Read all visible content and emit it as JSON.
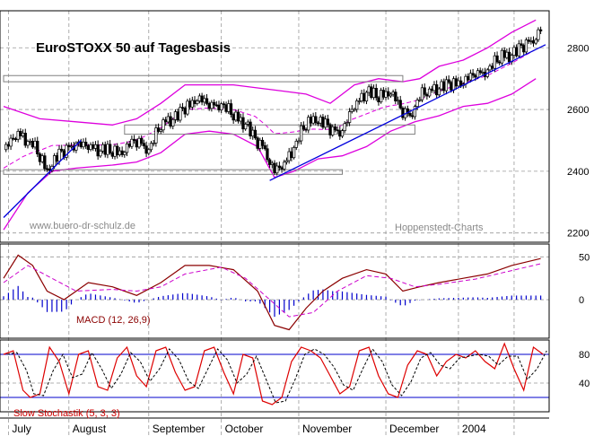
{
  "chart_data": [
    {
      "type": "candlestick",
      "panel": "price",
      "title": "EuroSTOXX 50 auf Tagesbasis",
      "watermark": "www.buero-dr-schulz.de",
      "source": "Hoppenstedt-Charts",
      "x_ticks": [
        "July",
        "August",
        "September",
        "October",
        "November",
        "December",
        "2004"
      ],
      "y_ticks": [
        2200,
        2400,
        2600,
        2800
      ],
      "ylim": [
        2170,
        2920
      ],
      "grid": true,
      "close_series": [
        {
          "day": 0,
          "close": 2470
        },
        {
          "day": 6,
          "close": 2520
        },
        {
          "day": 12,
          "close": 2490
        },
        {
          "day": 18,
          "close": 2400
        },
        {
          "day": 22,
          "close": 2450
        },
        {
          "day": 30,
          "close": 2490
        },
        {
          "day": 40,
          "close": 2470
        },
        {
          "day": 48,
          "close": 2460
        },
        {
          "day": 55,
          "close": 2500
        },
        {
          "day": 60,
          "close": 2470
        },
        {
          "day": 66,
          "close": 2560
        },
        {
          "day": 72,
          "close": 2580
        },
        {
          "day": 80,
          "close": 2640
        },
        {
          "day": 85,
          "close": 2610
        },
        {
          "day": 90,
          "close": 2620
        },
        {
          "day": 96,
          "close": 2570
        },
        {
          "day": 100,
          "close": 2560
        },
        {
          "day": 104,
          "close": 2500
        },
        {
          "day": 108,
          "close": 2470
        },
        {
          "day": 112,
          "close": 2400
        },
        {
          "day": 116,
          "close": 2420
        },
        {
          "day": 120,
          "close": 2480
        },
        {
          "day": 124,
          "close": 2540
        },
        {
          "day": 128,
          "close": 2570
        },
        {
          "day": 132,
          "close": 2560
        },
        {
          "day": 136,
          "close": 2530
        },
        {
          "day": 140,
          "close": 2530
        },
        {
          "day": 144,
          "close": 2600
        },
        {
          "day": 150,
          "close": 2660
        },
        {
          "day": 155,
          "close": 2640
        },
        {
          "day": 160,
          "close": 2660
        },
        {
          "day": 164,
          "close": 2600
        },
        {
          "day": 168,
          "close": 2580
        },
        {
          "day": 172,
          "close": 2640
        },
        {
          "day": 178,
          "close": 2670
        },
        {
          "day": 185,
          "close": 2680
        },
        {
          "day": 192,
          "close": 2700
        },
        {
          "day": 200,
          "close": 2730
        },
        {
          "day": 206,
          "close": 2770
        },
        {
          "day": 212,
          "close": 2790
        },
        {
          "day": 218,
          "close": 2820
        },
        {
          "day": 222,
          "close": 2860
        }
      ],
      "upper_band": [
        {
          "day": 0,
          "value": 2610
        },
        {
          "day": 15,
          "value": 2570
        },
        {
          "day": 30,
          "value": 2560
        },
        {
          "day": 45,
          "value": 2550
        },
        {
          "day": 55,
          "value": 2570
        },
        {
          "day": 65,
          "value": 2620
        },
        {
          "day": 75,
          "value": 2680
        },
        {
          "day": 85,
          "value": 2680
        },
        {
          "day": 95,
          "value": 2680
        },
        {
          "day": 105,
          "value": 2670
        },
        {
          "day": 115,
          "value": 2660
        },
        {
          "day": 125,
          "value": 2650
        },
        {
          "day": 135,
          "value": 2620
        },
        {
          "day": 145,
          "value": 2680
        },
        {
          "day": 155,
          "value": 2700
        },
        {
          "day": 165,
          "value": 2690
        },
        {
          "day": 172,
          "value": 2700
        },
        {
          "day": 180,
          "value": 2740
        },
        {
          "day": 190,
          "value": 2760
        },
        {
          "day": 200,
          "value": 2800
        },
        {
          "day": 210,
          "value": 2850
        },
        {
          "day": 220,
          "value": 2890
        }
      ],
      "lower_band": [
        {
          "day": 0,
          "value": 2210
        },
        {
          "day": 10,
          "value": 2330
        },
        {
          "day": 20,
          "value": 2400
        },
        {
          "day": 30,
          "value": 2410
        },
        {
          "day": 45,
          "value": 2420
        },
        {
          "day": 55,
          "value": 2430
        },
        {
          "day": 65,
          "value": 2460
        },
        {
          "day": 75,
          "value": 2520
        },
        {
          "day": 85,
          "value": 2530
        },
        {
          "day": 95,
          "value": 2520
        },
        {
          "day": 105,
          "value": 2480
        },
        {
          "day": 112,
          "value": 2380
        },
        {
          "day": 120,
          "value": 2400
        },
        {
          "day": 130,
          "value": 2440
        },
        {
          "day": 140,
          "value": 2450
        },
        {
          "day": 150,
          "value": 2480
        },
        {
          "day": 160,
          "value": 2530
        },
        {
          "day": 170,
          "value": 2560
        },
        {
          "day": 180,
          "value": 2580
        },
        {
          "day": 190,
          "value": 2610
        },
        {
          "day": 200,
          "value": 2620
        },
        {
          "day": 210,
          "value": 2650
        },
        {
          "day": 220,
          "value": 2700
        }
      ],
      "trend_lines": [
        {
          "from": {
            "day": 0,
            "value": 2250
          },
          "to": {
            "day": 32,
            "value": 2500
          }
        },
        {
          "from": {
            "day": 110,
            "value": 2370
          },
          "to": {
            "day": 224,
            "value": 2810
          }
        }
      ],
      "support_boxes": [
        {
          "day_start": 0,
          "day_end": 165,
          "low": 2690,
          "high": 2710
        },
        {
          "day_start": 50,
          "day_end": 170,
          "low": 2520,
          "high": 2550
        },
        {
          "day_start": 0,
          "day_end": 140,
          "low": 2390,
          "high": 2405
        }
      ]
    },
    {
      "type": "line+bar",
      "panel": "macd",
      "label": "MACD (12, 26,9)",
      "y_ticks": [
        0,
        50
      ],
      "ylim": [
        -45,
        65
      ],
      "macd": [
        {
          "day": 0,
          "value": 25
        },
        {
          "day": 6,
          "value": 52
        },
        {
          "day": 12,
          "value": 40
        },
        {
          "day": 18,
          "value": 10
        },
        {
          "day": 25,
          "value": 0
        },
        {
          "day": 35,
          "value": 20
        },
        {
          "day": 45,
          "value": 15
        },
        {
          "day": 55,
          "value": 5
        },
        {
          "day": 65,
          "value": 20
        },
        {
          "day": 75,
          "value": 40
        },
        {
          "day": 85,
          "value": 40
        },
        {
          "day": 95,
          "value": 35
        },
        {
          "day": 105,
          "value": 10
        },
        {
          "day": 112,
          "value": -30
        },
        {
          "day": 118,
          "value": -35
        },
        {
          "day": 125,
          "value": -10
        },
        {
          "day": 132,
          "value": 10
        },
        {
          "day": 140,
          "value": 25
        },
        {
          "day": 150,
          "value": 35
        },
        {
          "day": 158,
          "value": 30
        },
        {
          "day": 165,
          "value": 10
        },
        {
          "day": 172,
          "value": 15
        },
        {
          "day": 180,
          "value": 20
        },
        {
          "day": 190,
          "value": 25
        },
        {
          "day": 200,
          "value": 30
        },
        {
          "day": 210,
          "value": 40
        },
        {
          "day": 222,
          "value": 48
        }
      ],
      "signal": [
        {
          "day": 0,
          "value": 20
        },
        {
          "day": 10,
          "value": 40
        },
        {
          "day": 20,
          "value": 25
        },
        {
          "day": 30,
          "value": 10
        },
        {
          "day": 45,
          "value": 12
        },
        {
          "day": 55,
          "value": 10
        },
        {
          "day": 65,
          "value": 15
        },
        {
          "day": 75,
          "value": 30
        },
        {
          "day": 90,
          "value": 38
        },
        {
          "day": 100,
          "value": 25
        },
        {
          "day": 110,
          "value": 0
        },
        {
          "day": 118,
          "value": -20
        },
        {
          "day": 128,
          "value": -15
        },
        {
          "day": 138,
          "value": 10
        },
        {
          "day": 150,
          "value": 28
        },
        {
          "day": 160,
          "value": 25
        },
        {
          "day": 170,
          "value": 15
        },
        {
          "day": 180,
          "value": 18
        },
        {
          "day": 195,
          "value": 24
        },
        {
          "day": 210,
          "value": 34
        },
        {
          "day": 222,
          "value": 42
        }
      ]
    },
    {
      "type": "line",
      "panel": "stochastic",
      "label": "Slow Stochastik (5, 3, 3)",
      "y_ticks": [
        40,
        80
      ],
      "ylim": [
        0,
        100
      ],
      "reference_lines": [
        80,
        20
      ],
      "k_line": [
        {
          "day": 0,
          "value": 80
        },
        {
          "day": 4,
          "value": 85
        },
        {
          "day": 8,
          "value": 30
        },
        {
          "day": 11,
          "value": 20
        },
        {
          "day": 15,
          "value": 25
        },
        {
          "day": 19,
          "value": 90
        },
        {
          "day": 23,
          "value": 70
        },
        {
          "day": 27,
          "value": 25
        },
        {
          "day": 31,
          "value": 80
        },
        {
          "day": 35,
          "value": 85
        },
        {
          "day": 39,
          "value": 35
        },
        {
          "day": 43,
          "value": 30
        },
        {
          "day": 47,
          "value": 75
        },
        {
          "day": 51,
          "value": 90
        },
        {
          "day": 55,
          "value": 50
        },
        {
          "day": 59,
          "value": 35
        },
        {
          "day": 63,
          "value": 85
        },
        {
          "day": 67,
          "value": 90
        },
        {
          "day": 71,
          "value": 55
        },
        {
          "day": 75,
          "value": 30
        },
        {
          "day": 79,
          "value": 35
        },
        {
          "day": 83,
          "value": 85
        },
        {
          "day": 87,
          "value": 90
        },
        {
          "day": 91,
          "value": 55
        },
        {
          "day": 95,
          "value": 25
        },
        {
          "day": 99,
          "value": 80
        },
        {
          "day": 103,
          "value": 75
        },
        {
          "day": 107,
          "value": 15
        },
        {
          "day": 111,
          "value": 10
        },
        {
          "day": 115,
          "value": 20
        },
        {
          "day": 119,
          "value": 70
        },
        {
          "day": 123,
          "value": 90
        },
        {
          "day": 127,
          "value": 85
        },
        {
          "day": 131,
          "value": 75
        },
        {
          "day": 135,
          "value": 50
        },
        {
          "day": 139,
          "value": 25
        },
        {
          "day": 143,
          "value": 35
        },
        {
          "day": 147,
          "value": 85
        },
        {
          "day": 151,
          "value": 90
        },
        {
          "day": 155,
          "value": 50
        },
        {
          "day": 159,
          "value": 25
        },
        {
          "day": 163,
          "value": 20
        },
        {
          "day": 167,
          "value": 65
        },
        {
          "day": 171,
          "value": 85
        },
        {
          "day": 175,
          "value": 80
        },
        {
          "day": 179,
          "value": 50
        },
        {
          "day": 183,
          "value": 70
        },
        {
          "day": 187,
          "value": 80
        },
        {
          "day": 191,
          "value": 75
        },
        {
          "day": 195,
          "value": 85
        },
        {
          "day": 199,
          "value": 70
        },
        {
          "day": 203,
          "value": 60
        },
        {
          "day": 207,
          "value": 95
        },
        {
          "day": 211,
          "value": 60
        },
        {
          "day": 215,
          "value": 30
        },
        {
          "day": 219,
          "value": 90
        },
        {
          "day": 223,
          "value": 80
        }
      ]
    }
  ]
}
